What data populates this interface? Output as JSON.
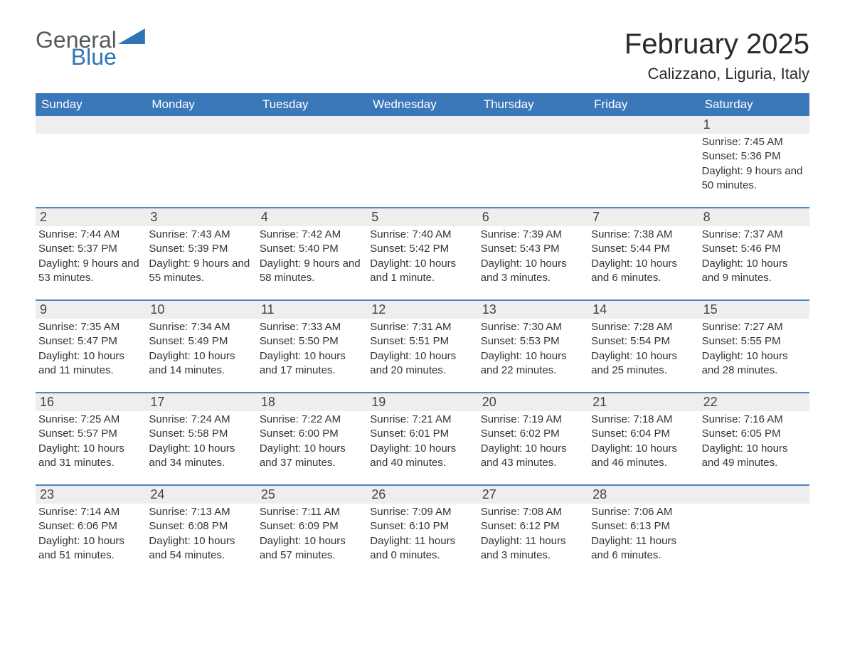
{
  "logo": {
    "text1": "General",
    "text2": "Blue",
    "sail_color": "#3074b5",
    "text1_color": "#555a5e",
    "text2_color": "#2f73b4"
  },
  "title": "February 2025",
  "location": "Calizzano, Liguria, Italy",
  "colors": {
    "header_bg": "#3a78b9",
    "header_text": "#ffffff",
    "week_border": "#4d86c0",
    "daynum_bg": "#eeeeee",
    "body_text": "#333333",
    "background": "#ffffff"
  },
  "typography": {
    "title_fontsize": 40,
    "location_fontsize": 22,
    "weekday_fontsize": 17,
    "daynum_fontsize": 18,
    "body_fontsize": 15,
    "font_family": "Arial"
  },
  "weekdays": [
    "Sunday",
    "Monday",
    "Tuesday",
    "Wednesday",
    "Thursday",
    "Friday",
    "Saturday"
  ],
  "weeks": [
    [
      null,
      null,
      null,
      null,
      null,
      null,
      {
        "n": "1",
        "sunrise": "Sunrise: 7:45 AM",
        "sunset": "Sunset: 5:36 PM",
        "daylight": "Daylight: 9 hours and 50 minutes."
      }
    ],
    [
      {
        "n": "2",
        "sunrise": "Sunrise: 7:44 AM",
        "sunset": "Sunset: 5:37 PM",
        "daylight": "Daylight: 9 hours and 53 minutes."
      },
      {
        "n": "3",
        "sunrise": "Sunrise: 7:43 AM",
        "sunset": "Sunset: 5:39 PM",
        "daylight": "Daylight: 9 hours and 55 minutes."
      },
      {
        "n": "4",
        "sunrise": "Sunrise: 7:42 AM",
        "sunset": "Sunset: 5:40 PM",
        "daylight": "Daylight: 9 hours and 58 minutes."
      },
      {
        "n": "5",
        "sunrise": "Sunrise: 7:40 AM",
        "sunset": "Sunset: 5:42 PM",
        "daylight": "Daylight: 10 hours and 1 minute."
      },
      {
        "n": "6",
        "sunrise": "Sunrise: 7:39 AM",
        "sunset": "Sunset: 5:43 PM",
        "daylight": "Daylight: 10 hours and 3 minutes."
      },
      {
        "n": "7",
        "sunrise": "Sunrise: 7:38 AM",
        "sunset": "Sunset: 5:44 PM",
        "daylight": "Daylight: 10 hours and 6 minutes."
      },
      {
        "n": "8",
        "sunrise": "Sunrise: 7:37 AM",
        "sunset": "Sunset: 5:46 PM",
        "daylight": "Daylight: 10 hours and 9 minutes."
      }
    ],
    [
      {
        "n": "9",
        "sunrise": "Sunrise: 7:35 AM",
        "sunset": "Sunset: 5:47 PM",
        "daylight": "Daylight: 10 hours and 11 minutes."
      },
      {
        "n": "10",
        "sunrise": "Sunrise: 7:34 AM",
        "sunset": "Sunset: 5:49 PM",
        "daylight": "Daylight: 10 hours and 14 minutes."
      },
      {
        "n": "11",
        "sunrise": "Sunrise: 7:33 AM",
        "sunset": "Sunset: 5:50 PM",
        "daylight": "Daylight: 10 hours and 17 minutes."
      },
      {
        "n": "12",
        "sunrise": "Sunrise: 7:31 AM",
        "sunset": "Sunset: 5:51 PM",
        "daylight": "Daylight: 10 hours and 20 minutes."
      },
      {
        "n": "13",
        "sunrise": "Sunrise: 7:30 AM",
        "sunset": "Sunset: 5:53 PM",
        "daylight": "Daylight: 10 hours and 22 minutes."
      },
      {
        "n": "14",
        "sunrise": "Sunrise: 7:28 AM",
        "sunset": "Sunset: 5:54 PM",
        "daylight": "Daylight: 10 hours and 25 minutes."
      },
      {
        "n": "15",
        "sunrise": "Sunrise: 7:27 AM",
        "sunset": "Sunset: 5:55 PM",
        "daylight": "Daylight: 10 hours and 28 minutes."
      }
    ],
    [
      {
        "n": "16",
        "sunrise": "Sunrise: 7:25 AM",
        "sunset": "Sunset: 5:57 PM",
        "daylight": "Daylight: 10 hours and 31 minutes."
      },
      {
        "n": "17",
        "sunrise": "Sunrise: 7:24 AM",
        "sunset": "Sunset: 5:58 PM",
        "daylight": "Daylight: 10 hours and 34 minutes."
      },
      {
        "n": "18",
        "sunrise": "Sunrise: 7:22 AM",
        "sunset": "Sunset: 6:00 PM",
        "daylight": "Daylight: 10 hours and 37 minutes."
      },
      {
        "n": "19",
        "sunrise": "Sunrise: 7:21 AM",
        "sunset": "Sunset: 6:01 PM",
        "daylight": "Daylight: 10 hours and 40 minutes."
      },
      {
        "n": "20",
        "sunrise": "Sunrise: 7:19 AM",
        "sunset": "Sunset: 6:02 PM",
        "daylight": "Daylight: 10 hours and 43 minutes."
      },
      {
        "n": "21",
        "sunrise": "Sunrise: 7:18 AM",
        "sunset": "Sunset: 6:04 PM",
        "daylight": "Daylight: 10 hours and 46 minutes."
      },
      {
        "n": "22",
        "sunrise": "Sunrise: 7:16 AM",
        "sunset": "Sunset: 6:05 PM",
        "daylight": "Daylight: 10 hours and 49 minutes."
      }
    ],
    [
      {
        "n": "23",
        "sunrise": "Sunrise: 7:14 AM",
        "sunset": "Sunset: 6:06 PM",
        "daylight": "Daylight: 10 hours and 51 minutes."
      },
      {
        "n": "24",
        "sunrise": "Sunrise: 7:13 AM",
        "sunset": "Sunset: 6:08 PM",
        "daylight": "Daylight: 10 hours and 54 minutes."
      },
      {
        "n": "25",
        "sunrise": "Sunrise: 7:11 AM",
        "sunset": "Sunset: 6:09 PM",
        "daylight": "Daylight: 10 hours and 57 minutes."
      },
      {
        "n": "26",
        "sunrise": "Sunrise: 7:09 AM",
        "sunset": "Sunset: 6:10 PM",
        "daylight": "Daylight: 11 hours and 0 minutes."
      },
      {
        "n": "27",
        "sunrise": "Sunrise: 7:08 AM",
        "sunset": "Sunset: 6:12 PM",
        "daylight": "Daylight: 11 hours and 3 minutes."
      },
      {
        "n": "28",
        "sunrise": "Sunrise: 7:06 AM",
        "sunset": "Sunset: 6:13 PM",
        "daylight": "Daylight: 11 hours and 6 minutes."
      },
      null
    ]
  ]
}
